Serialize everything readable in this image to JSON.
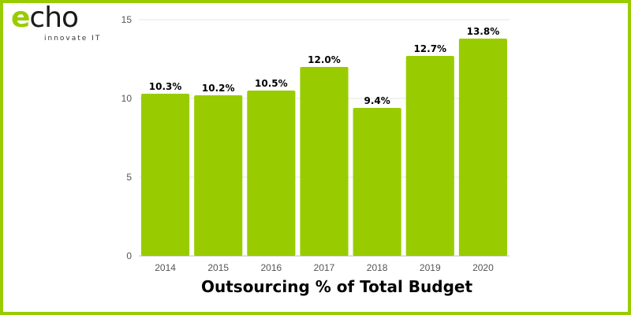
{
  "brand": {
    "logo_first_letter": "e",
    "logo_rest": "cho",
    "tagline": "innovate IT",
    "accent_color": "#99cc00",
    "border_color": "#99cc00"
  },
  "chart_data": {
    "type": "bar",
    "title": "Outsourcing % of Total Budget",
    "xlabel": "",
    "ylabel": "",
    "categories": [
      "2014",
      "2015",
      "2016",
      "2017",
      "2018",
      "2019",
      "2020"
    ],
    "values": [
      10.3,
      10.2,
      10.5,
      12.0,
      9.4,
      12.7,
      13.8
    ],
    "data_labels": [
      "10.3%",
      "10.2%",
      "10.5%",
      "12.0%",
      "9.4%",
      "12.7%",
      "13.8%"
    ],
    "ylim": [
      0,
      15
    ],
    "yticks": [
      0,
      5,
      10,
      15
    ],
    "grid": true,
    "bar_color": "#99cc00"
  }
}
